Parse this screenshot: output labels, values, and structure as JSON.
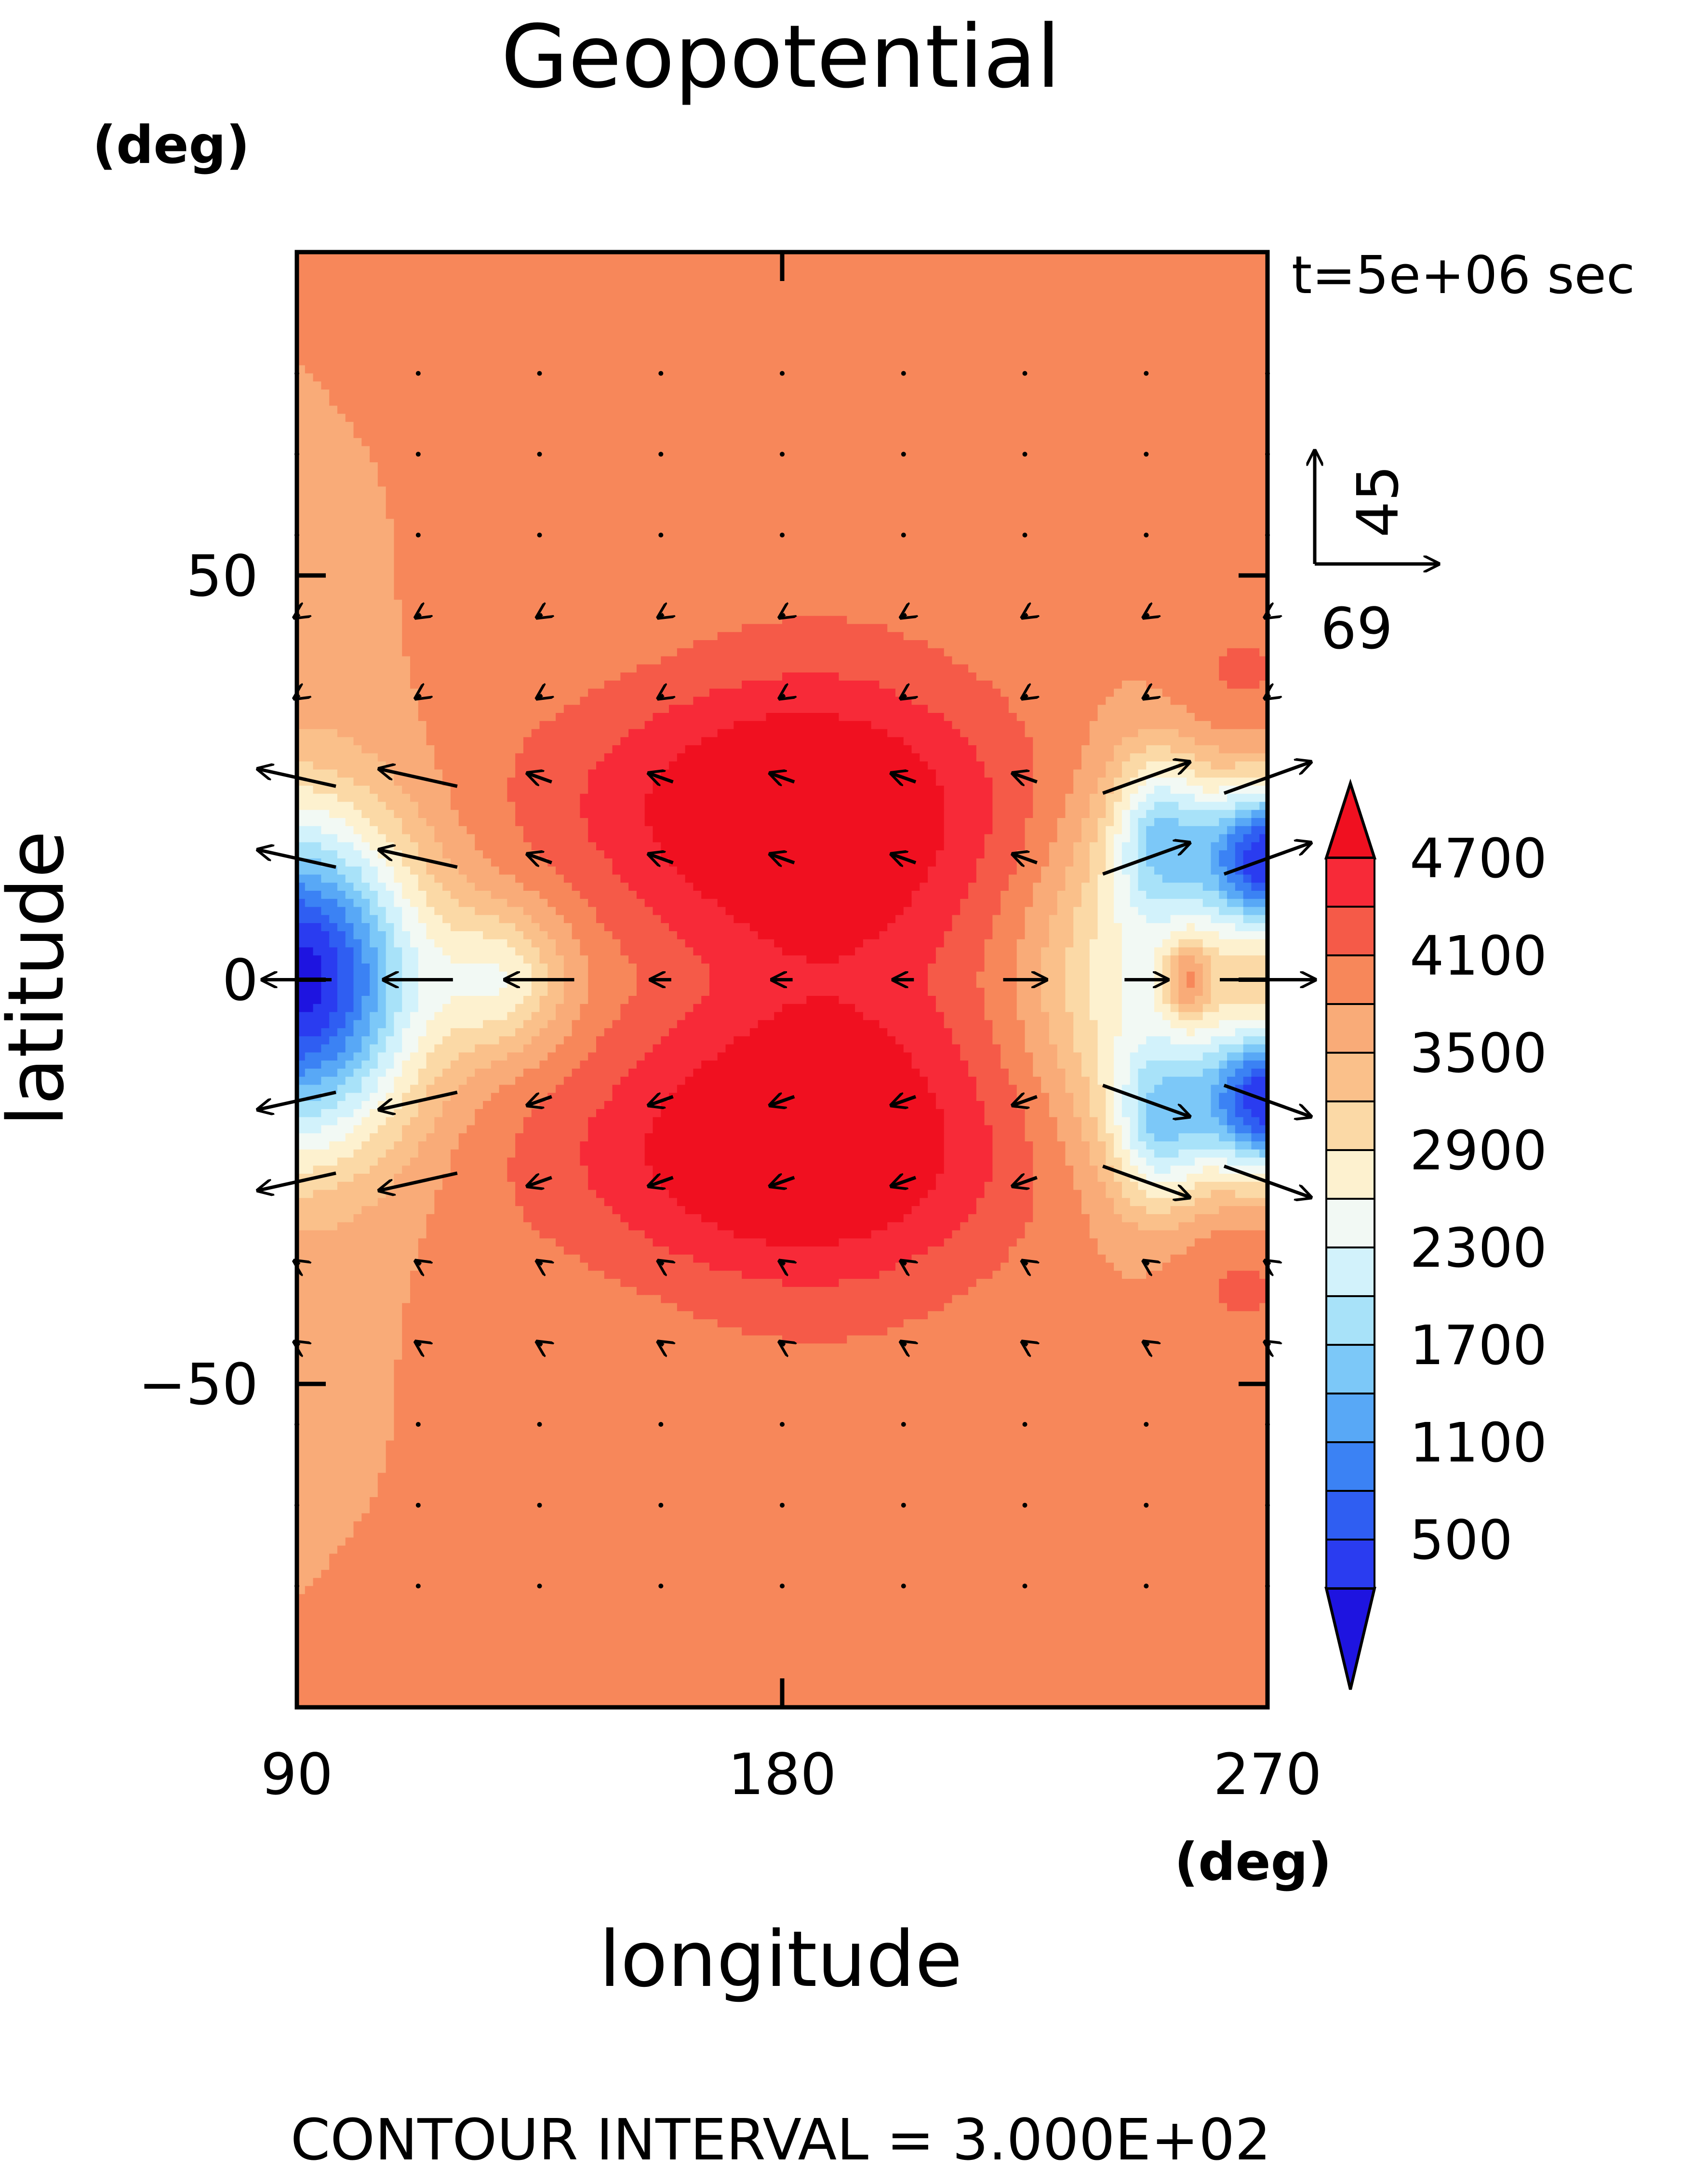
{
  "chart_data": {
    "type": "heatmap",
    "title": "Geopotential",
    "xlabel": "longitude",
    "ylabel": "latitude",
    "x_unit": "(deg)",
    "y_unit": "(deg)",
    "time_label": "t=5e+06 sec",
    "footer": "CONTOUR INTERVAL = 3.000E+02",
    "xlim": [
      90,
      270
    ],
    "ylim": [
      -90,
      90
    ],
    "x_ticks": [
      90,
      180,
      270
    ],
    "x_tick_labels": [
      "90",
      "180",
      "270"
    ],
    "y_ticks": [
      -50,
      0,
      50
    ],
    "y_tick_labels": [
      "−50",
      "0",
      "50"
    ],
    "grid": false,
    "contour_interval": 300,
    "levels": [
      200,
      500,
      800,
      1100,
      1400,
      1700,
      2000,
      2300,
      2600,
      2900,
      3200,
      3500,
      3800,
      4100,
      4400,
      4700
    ],
    "colorbar": {
      "placement": "right",
      "tick_labels": [
        "4700",
        "4100",
        "3500",
        "2900",
        "2300",
        "1700",
        "1100",
        "500"
      ],
      "tick_values": [
        4700,
        4100,
        3500,
        2900,
        2300,
        1700,
        1100,
        500
      ],
      "colors": [
        "#1e14e0",
        "#2a3cf0",
        "#2f5ef2",
        "#3b82f4",
        "#58a8f6",
        "#7cc8f8",
        "#a8e2f9",
        "#d2f2fb",
        "#f2f9f4",
        "#fdf1cf",
        "#fbd9a6",
        "#fac08a",
        "#f9ab78",
        "#f7875a",
        "#f55a48",
        "#f72a38",
        "#f01020"
      ]
    },
    "vector_reference": {
      "x_label": "69",
      "y_label": "45",
      "x_value": 69,
      "y_value": 45
    },
    "field_features": [
      {
        "name": "equatorial low (west edge)",
        "lon": 92,
        "lat": 0,
        "value": 400
      },
      {
        "name": "equatorial low lobe north (east)",
        "lon": 268,
        "lat": 15,
        "value": 400
      },
      {
        "name": "equatorial low lobe south (east)",
        "lon": 268,
        "lat": -15,
        "value": 400
      },
      {
        "name": "off-equator minimum north",
        "lon": 250,
        "lat": 18,
        "value": 2300
      },
      {
        "name": "off-equator minimum south",
        "lon": 250,
        "lat": -18,
        "value": 2300
      },
      {
        "name": "local maximum",
        "lon": 255,
        "lat": 0,
        "value": 4100
      },
      {
        "name": "white center",
        "lon": 128,
        "lat": 0,
        "value": 3000
      },
      {
        "name": "horseshoe maximum band",
        "lon": 175,
        "lat": 0,
        "value": 4700
      },
      {
        "name": "background",
        "lon": 180,
        "lat": 75,
        "value": 3800
      }
    ]
  }
}
